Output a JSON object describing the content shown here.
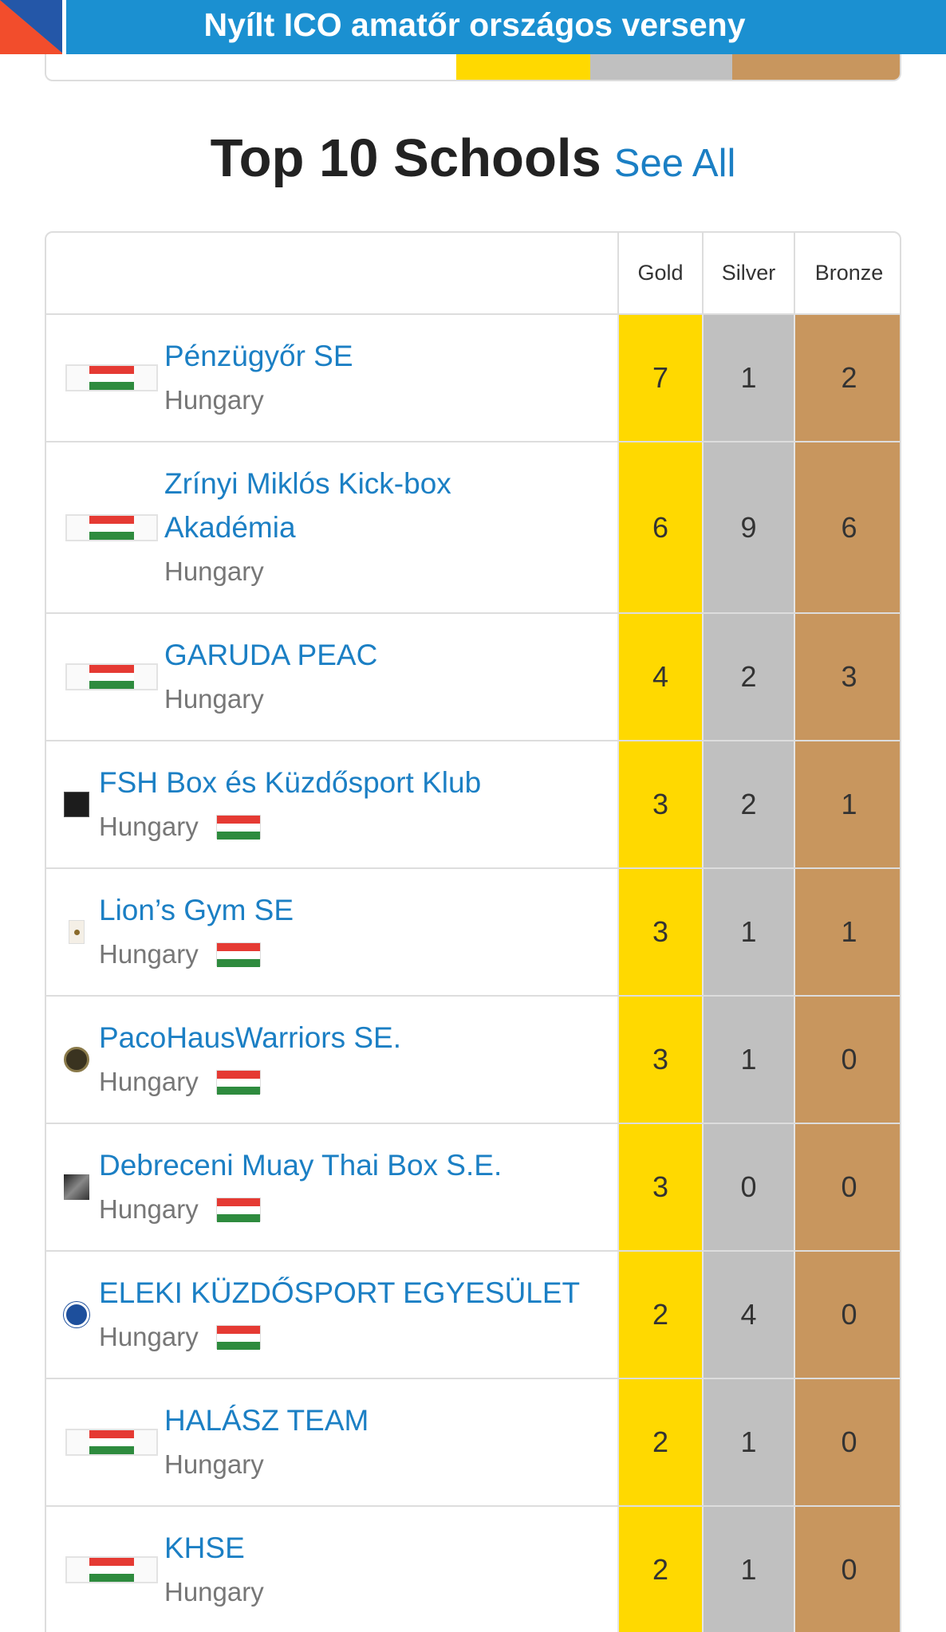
{
  "banner": {
    "title": "Nyílt ICO amatőr országos verseny"
  },
  "section": {
    "title": "Top 10 Schools",
    "see_all": "See All"
  },
  "table": {
    "headers": {
      "gold": "Gold",
      "silver": "Silver",
      "bronze": "Bronze"
    },
    "rows": [
      {
        "name": "Pénzügyőr SE",
        "country": "Hungary",
        "gold": "7",
        "silver": "1",
        "bronze": "2",
        "logo": "hungary-flag-icon"
      },
      {
        "name": "Zrínyi Miklós Kick-box Akadémia",
        "country": "Hungary",
        "gold": "6",
        "silver": "9",
        "bronze": "6",
        "logo": "hungary-flag-icon"
      },
      {
        "name": "GARUDA PEAC",
        "country": "Hungary",
        "gold": "4",
        "silver": "2",
        "bronze": "3",
        "logo": "hungary-flag-icon"
      },
      {
        "name": "FSH Box és Küzdősport Klub",
        "country": "Hungary",
        "gold": "3",
        "silver": "2",
        "bronze": "1",
        "logo": "club-logo-icon"
      },
      {
        "name": "Lion’s Gym SE",
        "country": "Hungary",
        "gold": "3",
        "silver": "1",
        "bronze": "1",
        "logo": "club-logo-icon"
      },
      {
        "name": "PacoHausWarriors SE.",
        "country": "Hungary",
        "gold": "3",
        "silver": "1",
        "bronze": "0",
        "logo": "club-logo-icon"
      },
      {
        "name": "Debreceni Muay Thai Box S.E.",
        "country": "Hungary",
        "gold": "3",
        "silver": "0",
        "bronze": "0",
        "logo": "club-logo-icon"
      },
      {
        "name": "ELEKI KÜZDŐSPORT EGYESÜLET",
        "country": "Hungary",
        "gold": "2",
        "silver": "4",
        "bronze": "0",
        "logo": "club-logo-icon"
      },
      {
        "name": "HALÁSZ TEAM",
        "country": "Hungary",
        "gold": "2",
        "silver": "1",
        "bronze": "0",
        "logo": "hungary-flag-icon"
      },
      {
        "name": "KHSE",
        "country": "Hungary",
        "gold": "2",
        "silver": "1",
        "bronze": "0",
        "logo": "hungary-flag-icon"
      }
    ]
  },
  "colors": {
    "banner": "#1b90d1",
    "link": "#1b7fc4",
    "gold": "#ffd900",
    "silver": "#c0c0c0",
    "bronze": "#c8965e"
  }
}
